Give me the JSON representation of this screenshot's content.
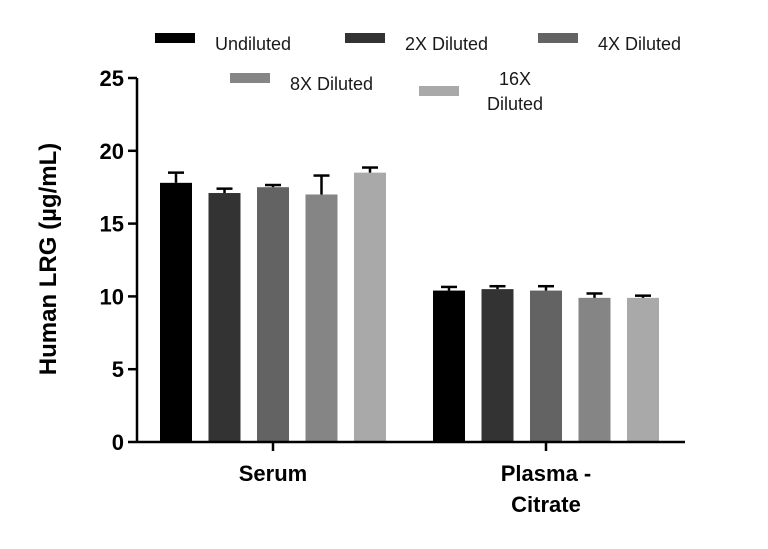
{
  "chart_data": {
    "type": "bar",
    "title": "",
    "xlabel": "",
    "ylabel": "Human LRG (µg/mL)",
    "ylim": [
      0,
      25
    ],
    "yticks": [
      0,
      5,
      10,
      15,
      20,
      25
    ],
    "categories": [
      "Serum",
      "Plasma - Citrate"
    ],
    "category_lines": [
      [
        "Serum"
      ],
      [
        "Plasma -",
        "Citrate"
      ]
    ],
    "legend_position": "top",
    "grid": false,
    "series": [
      {
        "name": "Undiluted",
        "label_lines": [
          "Undiluted"
        ],
        "color": "#000000",
        "values": [
          17.8,
          10.4
        ],
        "errors": [
          0.7,
          0.25
        ]
      },
      {
        "name": "2X Diluted",
        "label_lines": [
          "2X Diluted"
        ],
        "color": "#333333",
        "values": [
          17.1,
          10.5
        ],
        "errors": [
          0.3,
          0.2
        ]
      },
      {
        "name": "4X Diluted",
        "label_lines": [
          "4X Diluted"
        ],
        "color": "#636363",
        "values": [
          17.5,
          10.4
        ],
        "errors": [
          0.15,
          0.3
        ]
      },
      {
        "name": "8X Diluted",
        "label_lines": [
          "8X Diluted"
        ],
        "color": "#858585",
        "values": [
          17.0,
          9.9
        ],
        "errors": [
          1.3,
          0.3
        ]
      },
      {
        "name": "16X Diluted",
        "label_lines": [
          "16X",
          "Diluted"
        ],
        "color": "#a9a9a9",
        "values": [
          18.5,
          9.9
        ],
        "errors": [
          0.35,
          0.15
        ]
      }
    ]
  }
}
